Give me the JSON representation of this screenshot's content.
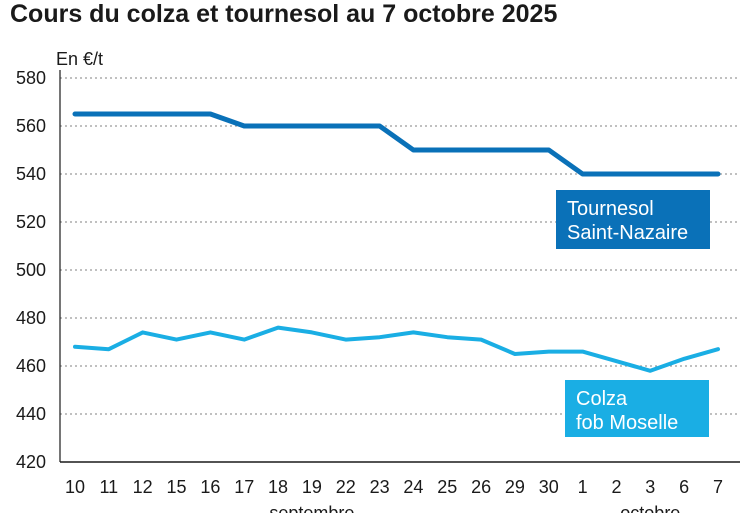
{
  "title": "Cours du colza et tournesol au 7 octobre 2025",
  "chart_data": {
    "type": "line",
    "title": "Cours du colza et tournesol au 7 octobre 2025",
    "ylabel": "En €/t",
    "xlabel": "",
    "ylim": [
      420,
      580
    ],
    "yticks": [
      420,
      440,
      460,
      480,
      500,
      520,
      540,
      560,
      580
    ],
    "grid": true,
    "categories": [
      "10",
      "11",
      "12",
      "15",
      "16",
      "17",
      "18",
      "19",
      "22",
      "23",
      "24",
      "25",
      "26",
      "29",
      "30",
      "1",
      "2",
      "3",
      "6",
      "7"
    ],
    "months": [
      {
        "label": "septembre",
        "from": 0,
        "to": 14
      },
      {
        "label": "octobre",
        "from": 15,
        "to": 19
      }
    ],
    "series": [
      {
        "name": "Tournesol Saint-Nazaire",
        "label_lines": [
          "Tournesol",
          "Saint-Nazaire"
        ],
        "color": "#0a71b8",
        "values": [
          565,
          565,
          565,
          565,
          565,
          560,
          560,
          560,
          560,
          560,
          550,
          550,
          550,
          550,
          550,
          540,
          540,
          540,
          540,
          540
        ]
      },
      {
        "name": "Colza fob Moselle",
        "label_lines": [
          "Colza",
          "fob Moselle"
        ],
        "color": "#1aaee4",
        "values": [
          468,
          467,
          474,
          471,
          474,
          471,
          476,
          474,
          471,
          472,
          474,
          472,
          471,
          465,
          466,
          466,
          462,
          458,
          463,
          467
        ]
      }
    ]
  }
}
